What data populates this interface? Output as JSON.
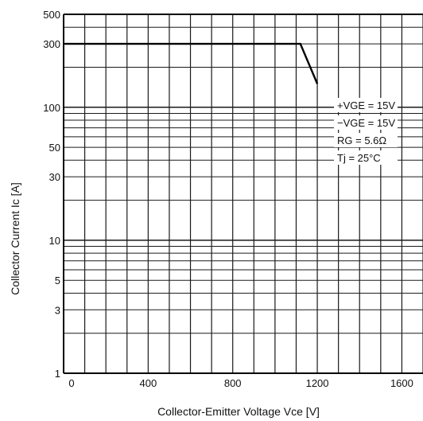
{
  "chart_data": {
    "type": "line",
    "xlabel": "Collector-Emitter Voltage V<sub>CE</sub> [V]",
    "xlabel_text": "Collector-Emitter Voltage Vce [V]",
    "ylabel": "Collector Current Ic [A]",
    "x_scale": "linear",
    "y_scale": "log",
    "xlim": [
      0,
      1700
    ],
    "ylim": [
      1,
      500
    ],
    "x_ticks": [
      {
        "value": 0,
        "label": "0"
      },
      {
        "value": 400,
        "label": "400"
      },
      {
        "value": 800,
        "label": "800"
      },
      {
        "value": 1200,
        "label": "1200"
      },
      {
        "value": 1600,
        "label": "1600"
      }
    ],
    "y_ticks": [
      {
        "value": 1,
        "label": "1"
      },
      {
        "value": 3,
        "label": "3"
      },
      {
        "value": 5,
        "label": "5"
      },
      {
        "value": 10,
        "label": "10"
      },
      {
        "value": 30,
        "label": "30"
      },
      {
        "value": 50,
        "label": "50"
      },
      {
        "value": 100,
        "label": "100"
      },
      {
        "value": 300,
        "label": "300"
      },
      {
        "value": 500,
        "label": "500"
      }
    ],
    "x_grid_step": 100,
    "y_grid_values": [
      1,
      2,
      3,
      4,
      5,
      6,
      7,
      8,
      9,
      10,
      20,
      30,
      40,
      50,
      60,
      70,
      80,
      90,
      100,
      200,
      300,
      400,
      500
    ],
    "grid": true,
    "series": [
      {
        "x": [
          0,
          1120,
          1200,
          1200
        ],
        "y": [
          300,
          300,
          150,
          150
        ]
      }
    ],
    "annotations": [
      "+VGE = 15V",
      "−VGE = 15V",
      "RG = 5.6Ω",
      "Tj = 25°C"
    ]
  },
  "colors": {
    "grid": "#1a1a1a",
    "line": "#000000",
    "background": "#ffffff"
  }
}
